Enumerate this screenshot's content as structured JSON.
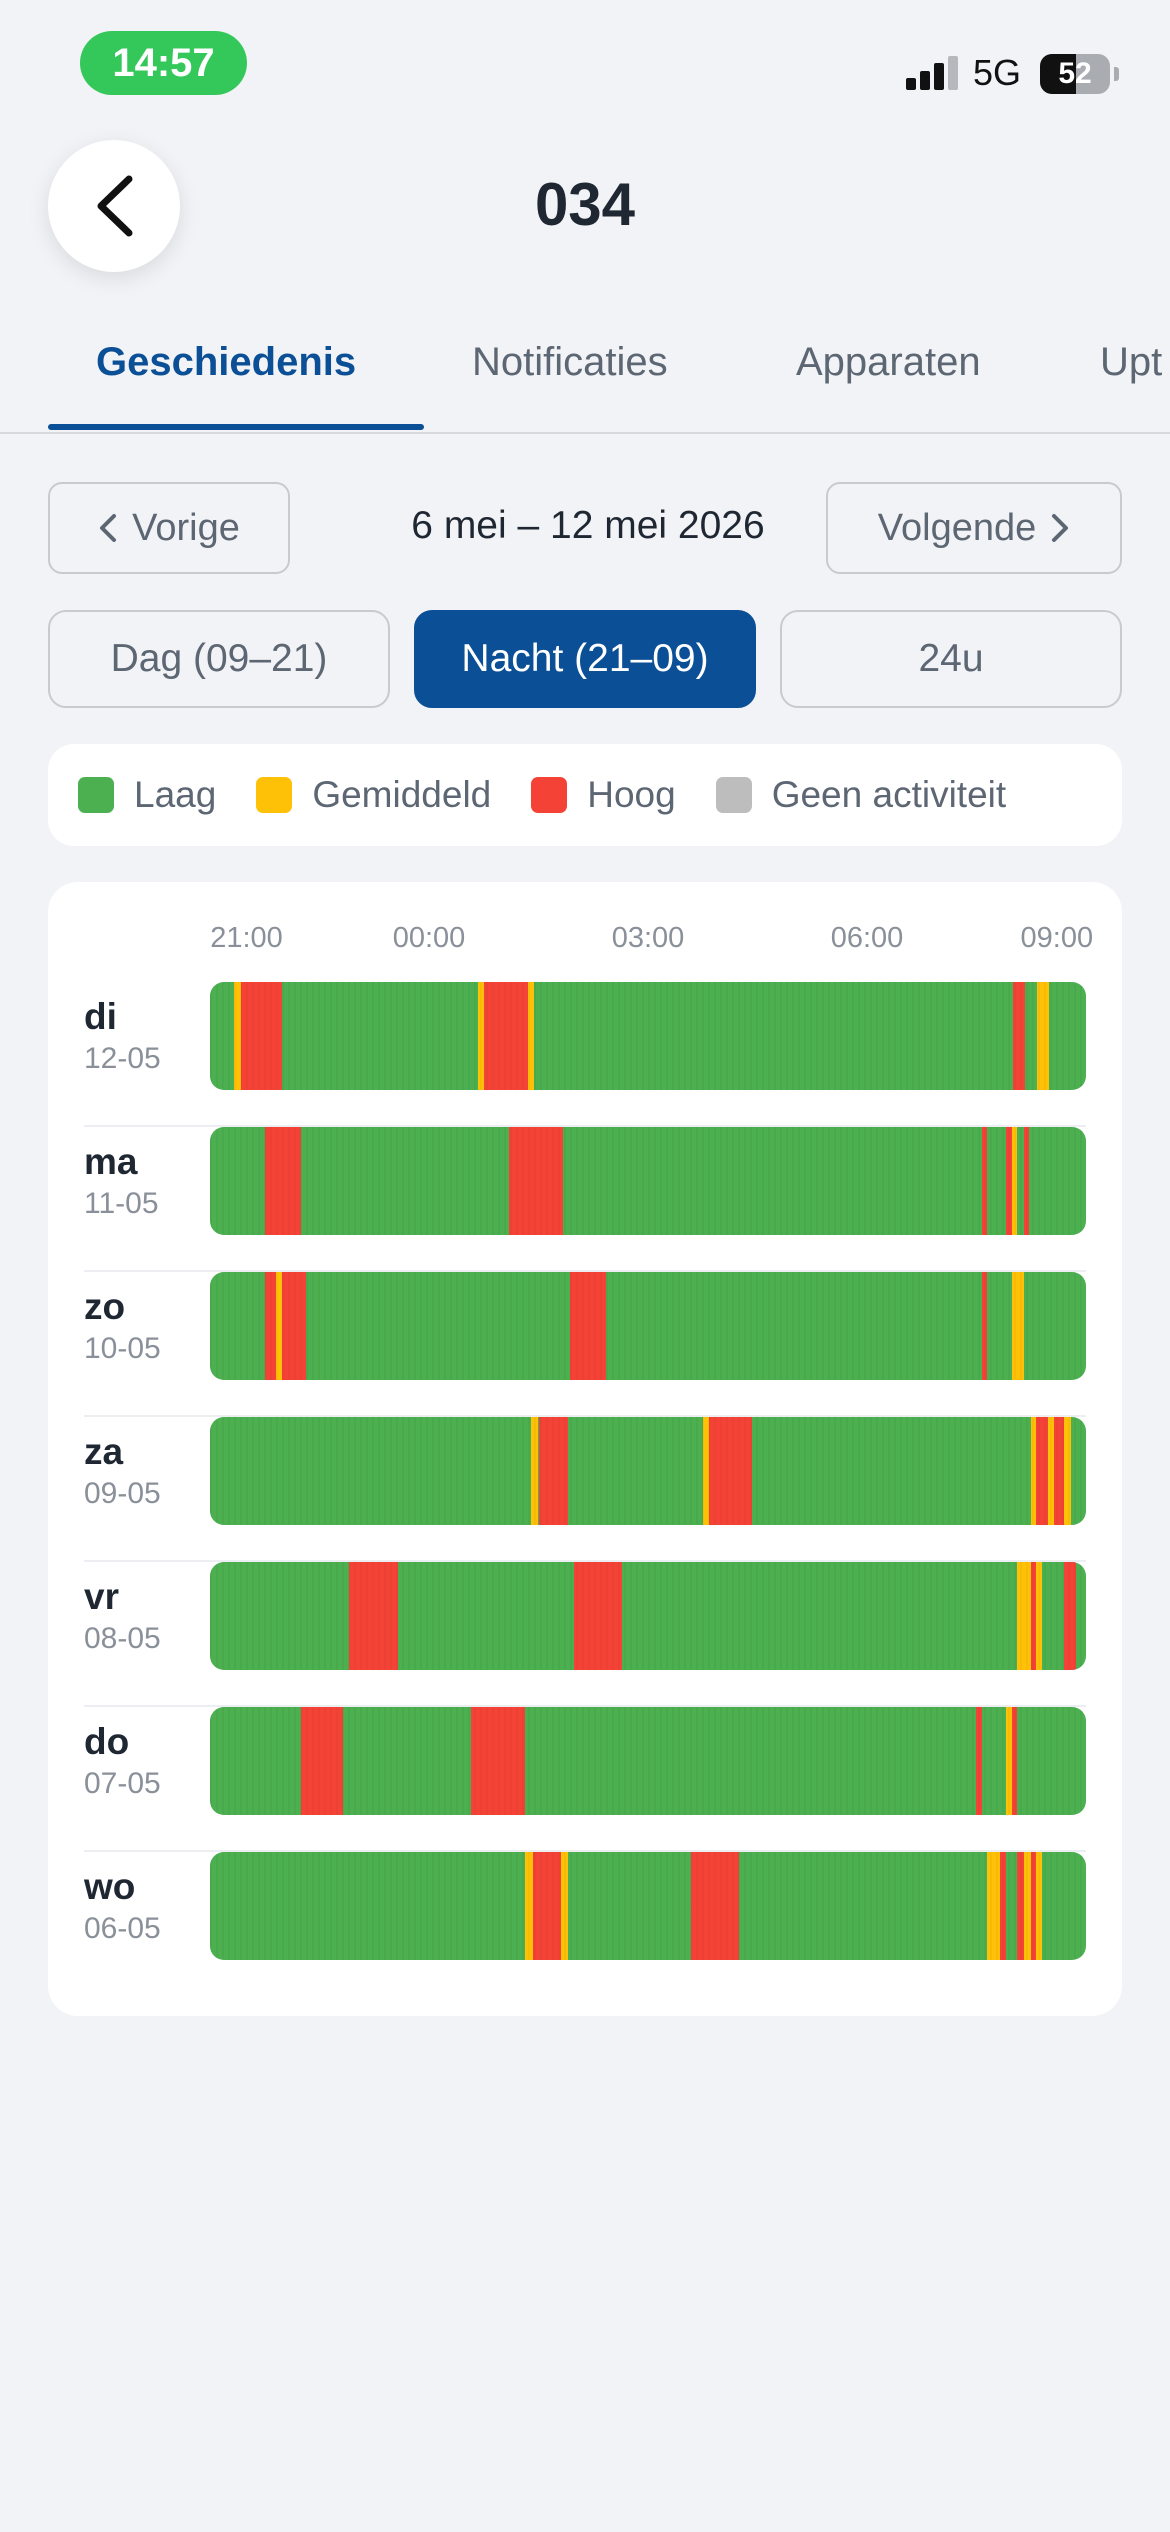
{
  "status_bar": {
    "time": "14:57",
    "network": "5G",
    "battery": "52",
    "battery_level": 0.52
  },
  "header": {
    "title": "034"
  },
  "tabs": [
    {
      "label": "Geschiedenis",
      "active": true
    },
    {
      "label": "Notificaties",
      "active": false
    },
    {
      "label": "Apparaten",
      "active": false
    },
    {
      "label": "Upt",
      "active": false
    }
  ],
  "week_nav": {
    "prev_label": "Vorige",
    "range": "6 mei – 12 mei 2026",
    "next_label": "Volgende"
  },
  "modes": [
    {
      "label": "Dag (09–21)",
      "active": false
    },
    {
      "label": "Nacht (21–09)",
      "active": true
    },
    {
      "label": "24u",
      "active": false
    }
  ],
  "legend": [
    {
      "label": "Laag",
      "color": "#4caf50"
    },
    {
      "label": "Gemiddeld",
      "color": "#ffc107"
    },
    {
      "label": "Hoog",
      "color": "#f44336"
    },
    {
      "label": "Geen activiteit",
      "color": "#bdbdbd"
    }
  ],
  "chart_data": {
    "type": "timeline",
    "x_ticks": [
      "21:00",
      "00:00",
      "03:00",
      "06:00",
      "09:00"
    ],
    "x_tick_hours": [
      0.5,
      3,
      6,
      9,
      11.6
    ],
    "range_hours": [
      0,
      12
    ],
    "base_level": "Laag",
    "colors": {
      "Laag": "#4caf50",
      "Gemiddeld": "#ffc107",
      "Hoog": "#f44336"
    },
    "days": [
      {
        "name": "di",
        "date": "12-05",
        "events": [
          {
            "start": 0.33,
            "end": 0.42,
            "level": "Gemiddeld"
          },
          {
            "start": 0.42,
            "end": 0.99,
            "level": "Hoog"
          },
          {
            "start": 3.67,
            "end": 3.76,
            "level": "Gemiddeld"
          },
          {
            "start": 3.76,
            "end": 4.35,
            "level": "Hoog"
          },
          {
            "start": 4.35,
            "end": 4.44,
            "level": "Gemiddeld"
          },
          {
            "start": 11.0,
            "end": 11.16,
            "level": "Hoog"
          },
          {
            "start": 11.33,
            "end": 11.5,
            "level": "Gemiddeld"
          }
        ]
      },
      {
        "name": "ma",
        "date": "11-05",
        "events": [
          {
            "start": 0.75,
            "end": 1.24,
            "level": "Hoog"
          },
          {
            "start": 4.1,
            "end": 4.84,
            "level": "Hoog"
          },
          {
            "start": 10.57,
            "end": 10.65,
            "level": "Hoog"
          },
          {
            "start": 10.9,
            "end": 10.98,
            "level": "Hoog"
          },
          {
            "start": 10.98,
            "end": 11.06,
            "level": "Gemiddeld"
          },
          {
            "start": 11.15,
            "end": 11.22,
            "level": "Hoog"
          }
        ]
      },
      {
        "name": "zo",
        "date": "10-05",
        "events": [
          {
            "start": 0.75,
            "end": 0.91,
            "level": "Hoog"
          },
          {
            "start": 0.91,
            "end": 0.99,
            "level": "Gemiddeld"
          },
          {
            "start": 0.99,
            "end": 1.32,
            "level": "Hoog"
          },
          {
            "start": 4.93,
            "end": 5.43,
            "level": "Hoog"
          },
          {
            "start": 10.57,
            "end": 10.65,
            "level": "Hoog"
          },
          {
            "start": 10.98,
            "end": 11.15,
            "level": "Gemiddeld"
          }
        ]
      },
      {
        "name": "za",
        "date": "09-05",
        "events": [
          {
            "start": 4.4,
            "end": 4.5,
            "level": "Gemiddeld"
          },
          {
            "start": 4.5,
            "end": 4.9,
            "level": "Hoog"
          },
          {
            "start": 6.75,
            "end": 6.84,
            "level": "Gemiddeld"
          },
          {
            "start": 6.84,
            "end": 7.42,
            "level": "Hoog"
          },
          {
            "start": 11.24,
            "end": 11.32,
            "level": "Gemiddeld"
          },
          {
            "start": 11.32,
            "end": 11.48,
            "level": "Hoog"
          },
          {
            "start": 11.48,
            "end": 11.56,
            "level": "Gemiddeld"
          },
          {
            "start": 11.56,
            "end": 11.7,
            "level": "Hoog"
          },
          {
            "start": 11.7,
            "end": 11.8,
            "level": "Gemiddeld"
          }
        ]
      },
      {
        "name": "vr",
        "date": "08-05",
        "events": [
          {
            "start": 1.91,
            "end": 2.57,
            "level": "Hoog"
          },
          {
            "start": 4.99,
            "end": 5.65,
            "level": "Hoog"
          },
          {
            "start": 11.06,
            "end": 11.24,
            "level": "Gemiddeld"
          },
          {
            "start": 11.24,
            "end": 11.32,
            "level": "Hoog"
          },
          {
            "start": 11.32,
            "end": 11.4,
            "level": "Gemiddeld"
          },
          {
            "start": 11.7,
            "end": 11.86,
            "level": "Hoog"
          }
        ]
      },
      {
        "name": "do",
        "date": "07-05",
        "events": [
          {
            "start": 1.24,
            "end": 1.82,
            "level": "Hoog"
          },
          {
            "start": 3.58,
            "end": 4.32,
            "level": "Hoog"
          },
          {
            "start": 10.49,
            "end": 10.57,
            "level": "Hoog"
          },
          {
            "start": 10.9,
            "end": 10.98,
            "level": "Gemiddeld"
          },
          {
            "start": 10.98,
            "end": 11.06,
            "level": "Hoog"
          }
        ]
      },
      {
        "name": "wo",
        "date": "06-05",
        "events": [
          {
            "start": 4.32,
            "end": 4.42,
            "level": "Gemiddeld"
          },
          {
            "start": 4.42,
            "end": 4.81,
            "level": "Hoog"
          },
          {
            "start": 4.81,
            "end": 4.91,
            "level": "Gemiddeld"
          },
          {
            "start": 6.59,
            "end": 7.25,
            "level": "Hoog"
          },
          {
            "start": 10.65,
            "end": 10.82,
            "level": "Gemiddeld"
          },
          {
            "start": 10.82,
            "end": 10.9,
            "level": "Hoog"
          },
          {
            "start": 11.06,
            "end": 11.15,
            "level": "Hoog"
          },
          {
            "start": 11.15,
            "end": 11.24,
            "level": "Gemiddeld"
          },
          {
            "start": 11.24,
            "end": 11.32,
            "level": "Hoog"
          },
          {
            "start": 11.32,
            "end": 11.4,
            "level": "Gemiddeld"
          }
        ]
      }
    ]
  }
}
